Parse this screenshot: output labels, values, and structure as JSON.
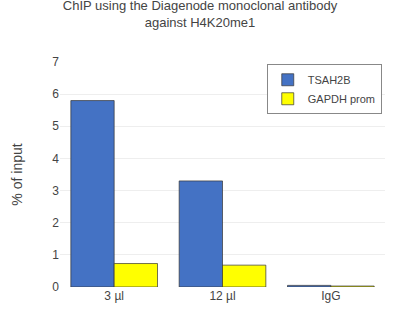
{
  "chart_data": {
    "type": "bar",
    "title": "ChIP using the Diagenode monoclonal antibody\nagainst H4K20me1",
    "ylabel": "% of input",
    "categories": [
      "3 µl",
      "12 µl",
      "IgG"
    ],
    "series": [
      {
        "name": "TSAH2B",
        "color": "#4472c4",
        "values": [
          5.8,
          3.3,
          0.05
        ]
      },
      {
        "name": "GAPDH prom",
        "color": "#ffff00",
        "values": [
          0.73,
          0.68,
          0.03
        ]
      }
    ],
    "ylim": [
      0,
      7
    ],
    "yticks": [
      0,
      1,
      2,
      3,
      4,
      5,
      6,
      7
    ],
    "grid": true,
    "legend": "upper right"
  }
}
